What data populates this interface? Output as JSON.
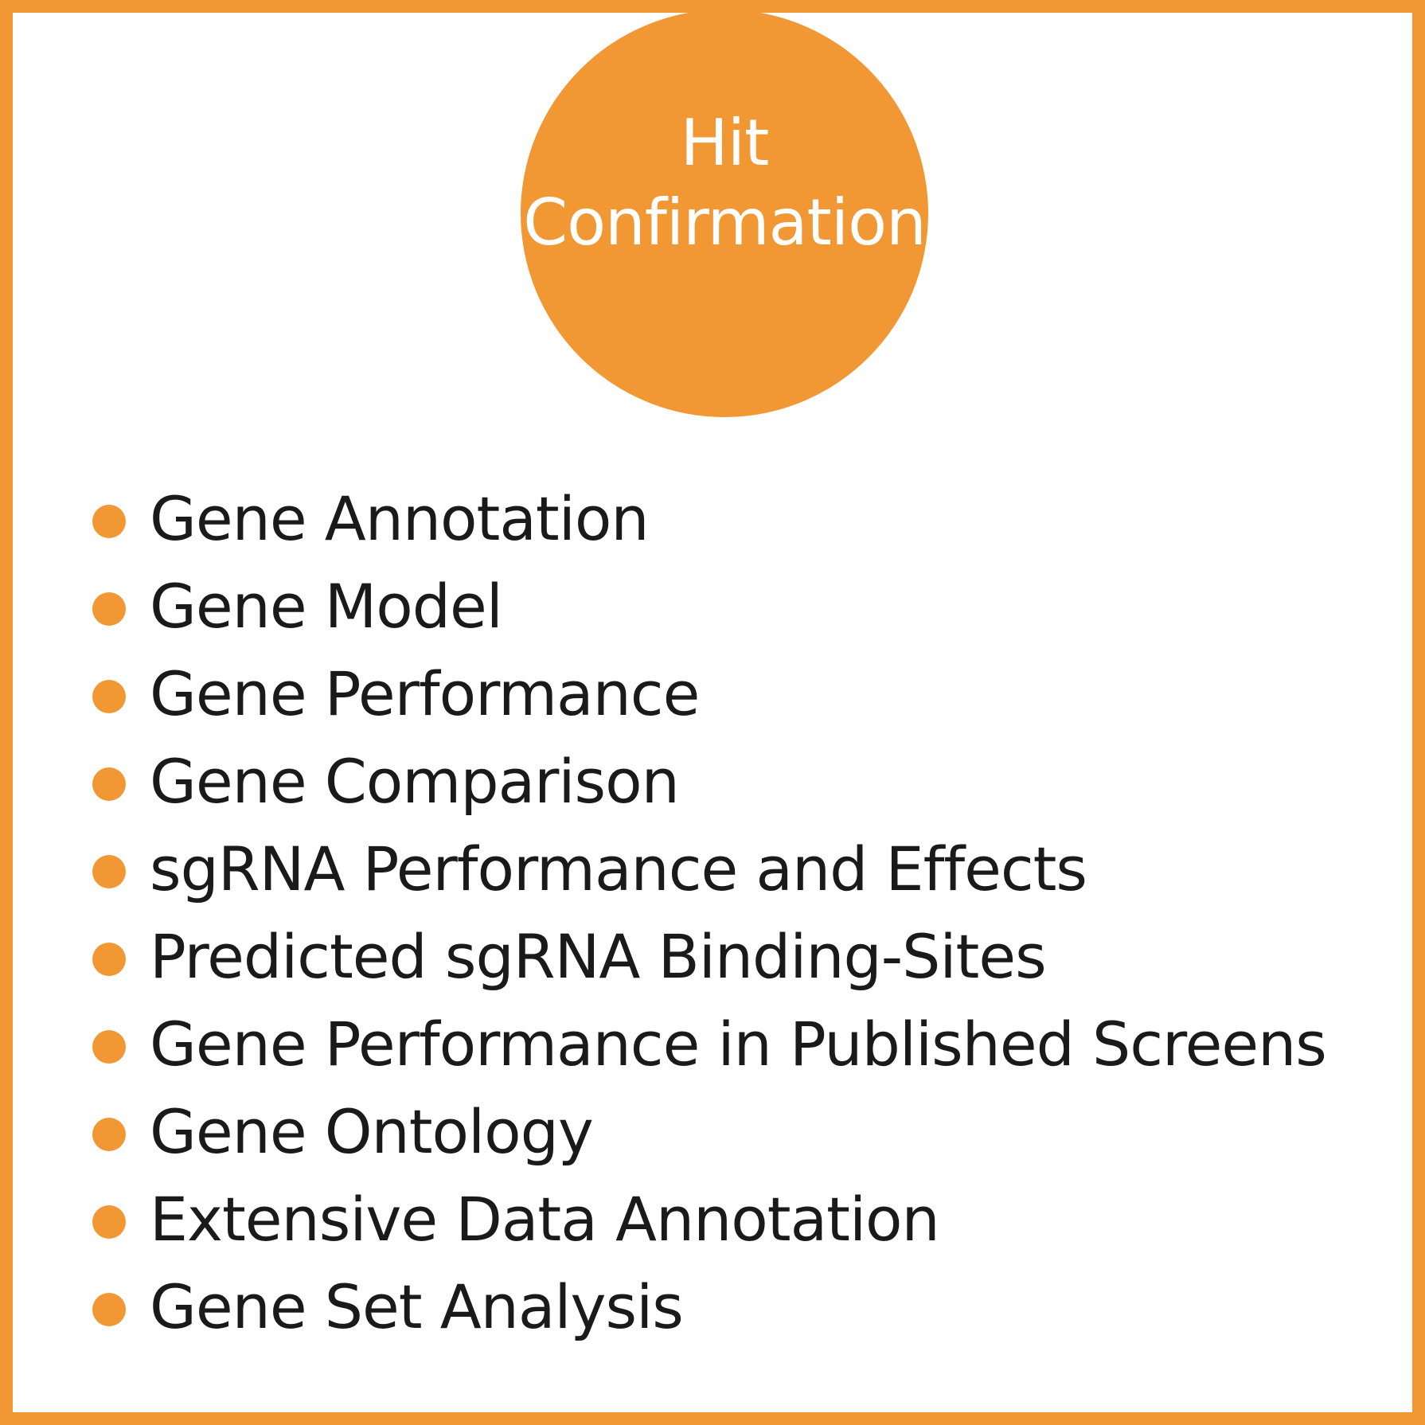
{
  "title": "Hit\nConfirmation",
  "colors": {
    "accent": "#f19834",
    "text": "#1a1a1a",
    "title_text": "#ffffff",
    "background": "#ffffff"
  },
  "items": [
    {
      "label": "Gene Annotation"
    },
    {
      "label": "Gene Model"
    },
    {
      "label": "Gene Performance"
    },
    {
      "label": "Gene Comparison"
    },
    {
      "label": "sgRNA Performance and Effects"
    },
    {
      "label": "Predicted sgRNA Binding-Sites"
    },
    {
      "label": "Gene Performance in Published Screens"
    },
    {
      "label": "Gene Ontology"
    },
    {
      "label": "Extensive Data Annotation"
    },
    {
      "label": "Gene Set Analysis"
    }
  ]
}
